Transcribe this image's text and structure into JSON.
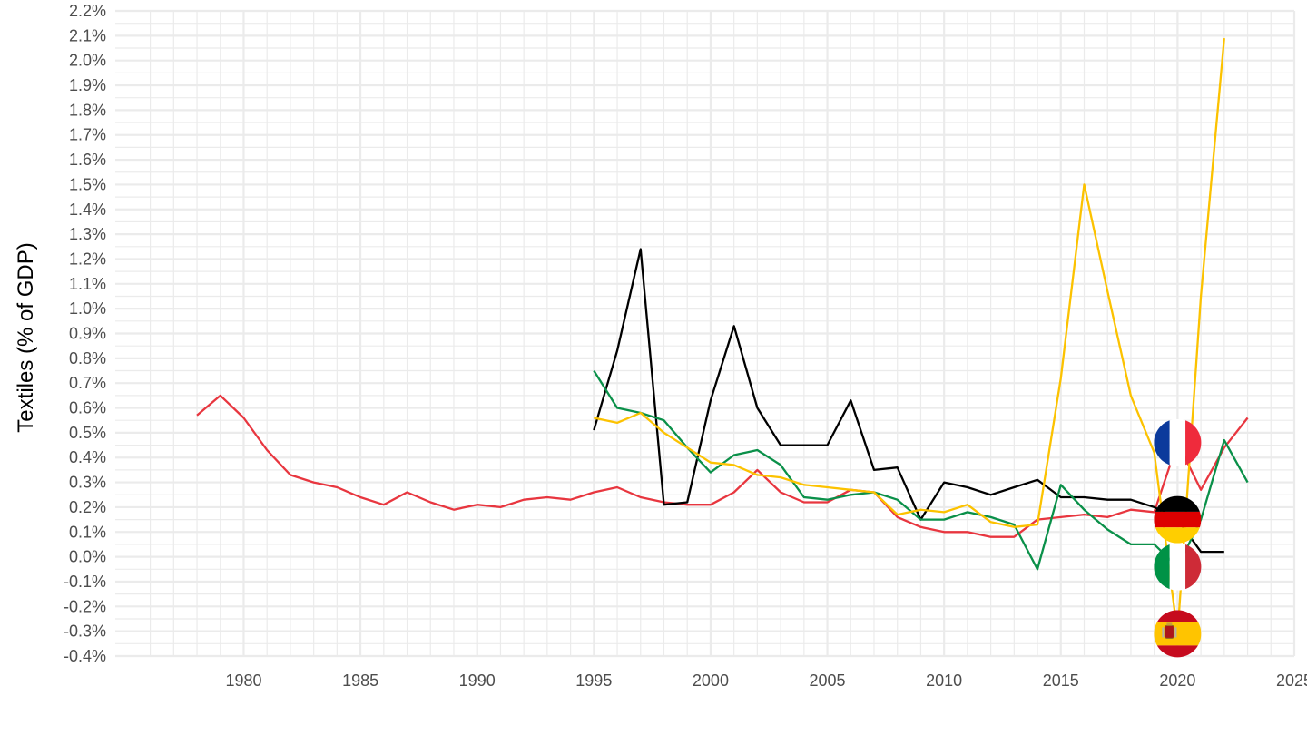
{
  "chart_data": {
    "type": "line",
    "title": "",
    "xlabel": "",
    "ylabel": "Textiles (% of GDP)",
    "xlim": [
      1974.5,
      2025
    ],
    "ylim": [
      -0.4,
      2.2
    ],
    "x_ticks": [
      1980,
      1985,
      1990,
      1995,
      2000,
      2005,
      2010,
      2015,
      2020,
      2025
    ],
    "y_ticks": [
      "-0.4%",
      "-0.3%",
      "-0.2%",
      "-0.1%",
      "0.0%",
      "0.1%",
      "0.2%",
      "0.3%",
      "0.4%",
      "0.5%",
      "0.6%",
      "0.7%",
      "0.8%",
      "0.9%",
      "1.0%",
      "1.1%",
      "1.2%",
      "1.3%",
      "1.4%",
      "1.5%",
      "1.6%",
      "1.7%",
      "1.8%",
      "1.9%",
      "2.0%",
      "2.1%",
      "2.2%"
    ],
    "grid": true,
    "legend": "none",
    "series": [
      {
        "country": "France",
        "color": "#e8363f",
        "icon": "france-flag-icon",
        "x": [
          1978,
          1979,
          1980,
          1981,
          1982,
          1983,
          1984,
          1985,
          1986,
          1987,
          1988,
          1989,
          1990,
          1991,
          1992,
          1993,
          1994,
          1995,
          1996,
          1997,
          1998,
          1999,
          2000,
          2001,
          2002,
          2003,
          2004,
          2005,
          2006,
          2007,
          2008,
          2009,
          2010,
          2011,
          2012,
          2013,
          2014,
          2015,
          2016,
          2017,
          2018,
          2019,
          2020,
          2021,
          2022,
          2023
        ],
        "y": [
          0.57,
          0.65,
          0.56,
          0.43,
          0.33,
          0.3,
          0.28,
          0.24,
          0.21,
          0.26,
          0.22,
          0.19,
          0.21,
          0.2,
          0.23,
          0.24,
          0.23,
          0.26,
          0.28,
          0.24,
          0.22,
          0.21,
          0.21,
          0.26,
          0.35,
          0.26,
          0.22,
          0.22,
          0.27,
          0.26,
          0.16,
          0.12,
          0.1,
          0.1,
          0.08,
          0.08,
          0.15,
          0.16,
          0.17,
          0.16,
          0.19,
          0.18,
          0.46,
          0.27,
          0.44,
          0.56
        ]
      },
      {
        "country": "Germany",
        "color": "#000000",
        "icon": "germany-flag-icon",
        "x": [
          1995,
          1996,
          1997,
          1998,
          1999,
          2000,
          2001,
          2002,
          2003,
          2004,
          2005,
          2006,
          2007,
          2008,
          2009,
          2010,
          2011,
          2012,
          2013,
          2014,
          2015,
          2016,
          2017,
          2018,
          2019,
          2020,
          2021,
          2022
        ],
        "y": [
          0.51,
          0.83,
          1.24,
          0.21,
          0.22,
          0.63,
          0.93,
          0.6,
          0.45,
          0.45,
          0.45,
          0.63,
          0.35,
          0.36,
          0.15,
          0.3,
          0.28,
          0.25,
          0.28,
          0.31,
          0.24,
          0.24,
          0.23,
          0.23,
          0.2,
          0.15,
          0.02,
          0.02
        ]
      },
      {
        "country": "Italy",
        "color": "#0a9049",
        "icon": "italy-flag-icon",
        "x": [
          1995,
          1996,
          1997,
          1998,
          1999,
          2000,
          2001,
          2002,
          2003,
          2004,
          2005,
          2006,
          2007,
          2008,
          2009,
          2010,
          2011,
          2012,
          2013,
          2014,
          2015,
          2016,
          2017,
          2018,
          2019,
          2020,
          2021,
          2022,
          2023
        ],
        "y": [
          0.75,
          0.6,
          0.58,
          0.55,
          0.44,
          0.34,
          0.41,
          0.43,
          0.37,
          0.24,
          0.23,
          0.25,
          0.26,
          0.23,
          0.15,
          0.15,
          0.18,
          0.16,
          0.13,
          -0.05,
          0.29,
          0.19,
          0.11,
          0.05,
          0.05,
          -0.04,
          0.15,
          0.47,
          0.3
        ]
      },
      {
        "country": "Spain",
        "color": "#fcc200",
        "icon": "spain-flag-icon",
        "x": [
          1995,
          1996,
          1997,
          1998,
          1999,
          2000,
          2001,
          2002,
          2003,
          2004,
          2005,
          2006,
          2007,
          2008,
          2009,
          2010,
          2011,
          2012,
          2013,
          2014,
          2015,
          2016,
          2017,
          2018,
          2019,
          2020,
          2021,
          2022
        ],
        "y": [
          0.56,
          0.54,
          0.58,
          0.5,
          0.44,
          0.38,
          0.37,
          0.33,
          0.32,
          0.29,
          0.28,
          0.27,
          0.26,
          0.17,
          0.19,
          0.18,
          0.21,
          0.14,
          0.12,
          0.13,
          0.72,
          1.5,
          1.07,
          0.65,
          0.42,
          -0.31,
          1.05,
          2.09
        ]
      }
    ]
  }
}
